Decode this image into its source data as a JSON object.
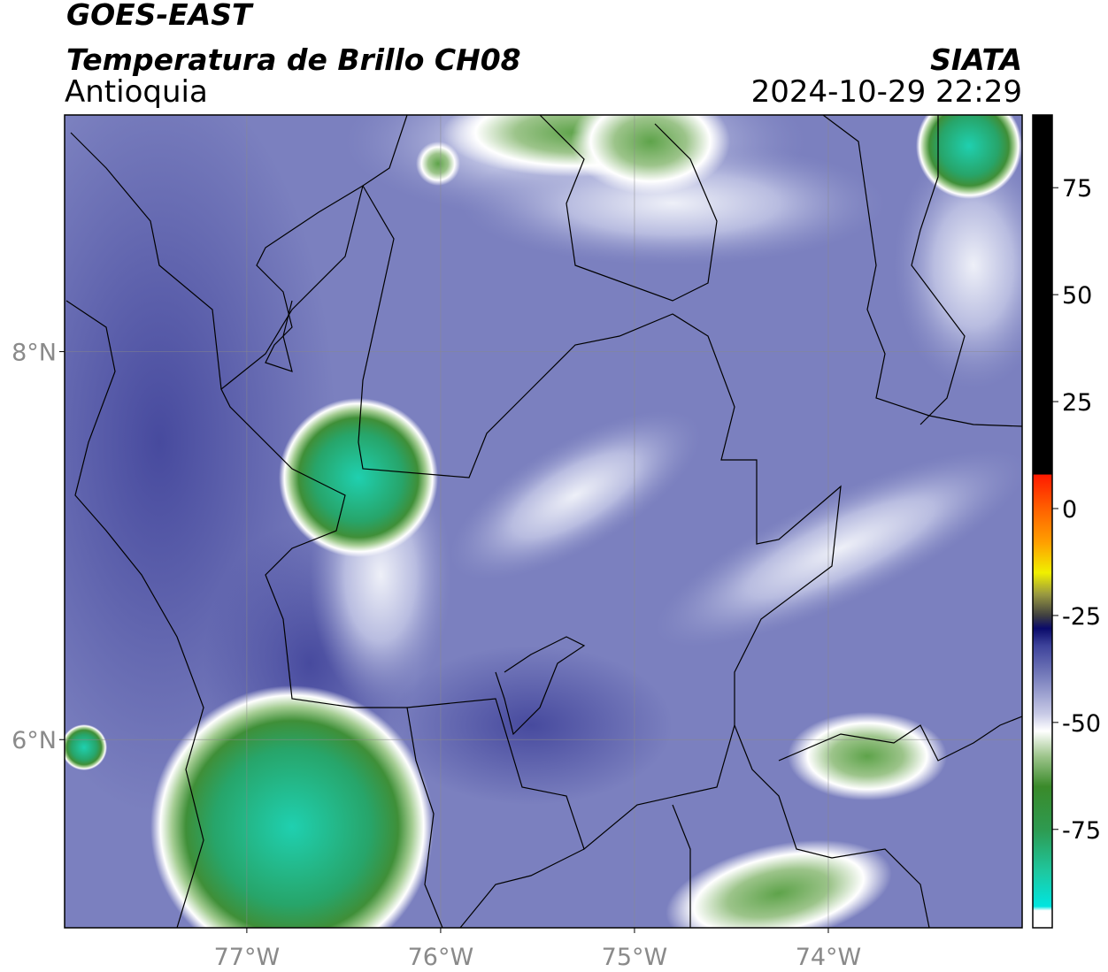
{
  "header": {
    "title": "GOES-EAST",
    "subtitle": "Temperatura de Brillo CH08",
    "region": "Antioquia",
    "source": "SIATA",
    "datetime": "2024-10-29 22:29"
  },
  "map": {
    "xlim": [
      -77.94,
      -73.0
    ],
    "ylim": [
      5.03,
      9.22
    ],
    "grid": true,
    "xticks": [
      {
        "value": -77,
        "label": "77°W"
      },
      {
        "value": -76,
        "label": "76°W"
      },
      {
        "value": -75,
        "label": "75°W"
      },
      {
        "value": -74,
        "label": "74°W"
      }
    ],
    "yticks": [
      {
        "value": 8,
        "label": "8°N"
      },
      {
        "value": 6,
        "label": "6°N"
      }
    ]
  },
  "colorbar": {
    "lim": [
      -98,
      92
    ],
    "ticks": [
      75,
      50,
      25,
      0,
      -25,
      -50,
      -75
    ],
    "stops": [
      {
        "value": 92,
        "color": "#000000"
      },
      {
        "value": 8,
        "color": "#000000"
      },
      {
        "value": 7.9,
        "color": "#ff1a00"
      },
      {
        "value": 0,
        "color": "#ff6000"
      },
      {
        "value": -8,
        "color": "#ffa000"
      },
      {
        "value": -15,
        "color": "#f0f000"
      },
      {
        "value": -20,
        "color": "#9a9a40"
      },
      {
        "value": -25,
        "color": "#404040"
      },
      {
        "value": -28,
        "color": "#0a0a6a"
      },
      {
        "value": -32,
        "color": "#3d429a"
      },
      {
        "value": -40,
        "color": "#7e84c0"
      },
      {
        "value": -48,
        "color": "#c8cae6"
      },
      {
        "value": -52,
        "color": "#ffffff"
      },
      {
        "value": -58,
        "color": "#9cc48a"
      },
      {
        "value": -65,
        "color": "#3a8a2a"
      },
      {
        "value": -75,
        "color": "#2e9a50"
      },
      {
        "value": -85,
        "color": "#1ec8a0"
      },
      {
        "value": -93,
        "color": "#00e5e0"
      },
      {
        "value": -94,
        "color": "#ffffff"
      },
      {
        "value": -98,
        "color": "#ffffff"
      }
    ]
  }
}
